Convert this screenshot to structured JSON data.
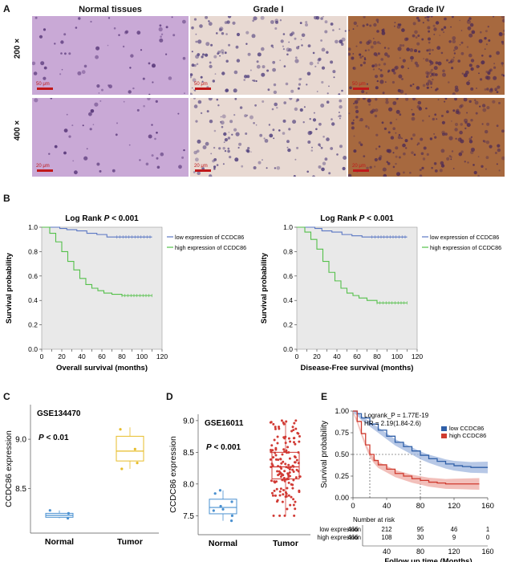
{
  "panel_letters": {
    "A": "A",
    "B": "B",
    "C": "C",
    "D": "D",
    "E": "E"
  },
  "panelA": {
    "columns": [
      "Normal tissues",
      "Grade I",
      "Grade IV"
    ],
    "rows": [
      "200 ×",
      "400 ×"
    ],
    "scale_labels": [
      "50 μm",
      "50 μm",
      "50 μm",
      "20 μm",
      "20 μm",
      "20 μm"
    ],
    "tile_colors": {
      "normal": "#c9a9d6",
      "grade1": "#e8d9d2",
      "grade4": "#a7693f"
    }
  },
  "chart_data": [
    {
      "type": "line",
      "id": "B-left",
      "title_prefix": "Log Rank ",
      "title_p": "P",
      "title_suffix": " < 0.001",
      "xlabel": "Overall survival (months)",
      "ylabel": "Survival probability",
      "xlim": [
        0,
        120
      ],
      "ylim": [
        0,
        1.0
      ],
      "xticks": [
        0,
        10,
        20,
        30,
        40,
        50,
        60,
        70,
        80,
        90,
        100,
        110,
        120
      ],
      "yticks": [
        0.0,
        0.2,
        0.4,
        0.6,
        0.8,
        1.0
      ],
      "ytick_labels": [
        "0.0",
        "0.2",
        "0.4",
        "0.6",
        "0.8",
        "1.0"
      ],
      "series": [
        {
          "name": "low expression of CCDC86",
          "color": "#5b78c4",
          "x": [
            0,
            8,
            18,
            25,
            35,
            45,
            55,
            65,
            75,
            85,
            95,
            110
          ],
          "y": [
            1.0,
            1.0,
            0.99,
            0.98,
            0.97,
            0.95,
            0.94,
            0.92,
            0.92,
            0.92,
            0.92,
            0.92
          ]
        },
        {
          "name": "high expression of CCDC86",
          "color": "#54c04a",
          "x": [
            0,
            8,
            14,
            20,
            26,
            32,
            38,
            44,
            50,
            56,
            62,
            70,
            80,
            90,
            100,
            110
          ],
          "y": [
            1.0,
            0.95,
            0.88,
            0.8,
            0.72,
            0.65,
            0.58,
            0.53,
            0.5,
            0.48,
            0.46,
            0.45,
            0.44,
            0.44,
            0.44,
            0.44
          ]
        }
      ]
    },
    {
      "type": "line",
      "id": "B-right",
      "title_prefix": "Log Rank ",
      "title_p": "P",
      "title_suffix": " < 0.001",
      "xlabel": "Disease-Free survival (months)",
      "ylabel": "Survival probability",
      "xlim": [
        0,
        120
      ],
      "ylim": [
        0,
        1.0
      ],
      "xticks": [
        0,
        10,
        20,
        30,
        40,
        50,
        60,
        70,
        80,
        90,
        100,
        110,
        120
      ],
      "yticks": [
        0.0,
        0.2,
        0.4,
        0.6,
        0.8,
        1.0
      ],
      "ytick_labels": [
        "0.0",
        "0.2",
        "0.4",
        "0.6",
        "0.8",
        "1.0"
      ],
      "series": [
        {
          "name": "low expression of CCDC86",
          "color": "#5b78c4",
          "x": [
            0,
            8,
            18,
            25,
            35,
            45,
            55,
            65,
            75,
            85,
            95,
            110
          ],
          "y": [
            1.0,
            1.0,
            0.99,
            0.97,
            0.96,
            0.94,
            0.93,
            0.92,
            0.92,
            0.92,
            0.92,
            0.92
          ]
        },
        {
          "name": "high expression of CCDC86",
          "color": "#54c04a",
          "x": [
            0,
            8,
            14,
            20,
            26,
            32,
            38,
            44,
            50,
            56,
            62,
            70,
            80,
            90,
            100,
            110
          ],
          "y": [
            1.0,
            0.96,
            0.9,
            0.82,
            0.72,
            0.63,
            0.56,
            0.5,
            0.46,
            0.44,
            0.42,
            0.4,
            0.38,
            0.38,
            0.38,
            0.38
          ]
        }
      ]
    },
    {
      "type": "box",
      "id": "C",
      "title": "GSE134470",
      "pvalue_p": "P",
      "pvalue_suffix": " < 0.01",
      "ylabel": "CCDC86 expression",
      "ylim": [
        8.05,
        9.35
      ],
      "yticks": [
        8.5,
        9.0
      ],
      "ytick_labels": [
        "8.5",
        "9.0"
      ],
      "categories": [
        "Normal",
        "Tumor"
      ],
      "colors": [
        "#4a90d0",
        "#e7bd2a"
      ],
      "boxes": [
        {
          "min": 8.2,
          "q1": 8.21,
          "median": 8.23,
          "q3": 8.25,
          "max": 8.28,
          "points": [
            8.2,
            8.25,
            8.28
          ]
        },
        {
          "min": 8.7,
          "q1": 8.78,
          "median": 8.88,
          "q3": 9.03,
          "max": 9.12,
          "points": [
            8.7,
            8.76,
            8.9,
            9.1
          ]
        }
      ]
    },
    {
      "type": "box",
      "id": "D",
      "title": "GSE16011",
      "pvalue_p": "P",
      "pvalue_suffix": " < 0.001",
      "ylabel": "CCDC86 expression",
      "ylim": [
        7.2,
        9.1
      ],
      "yticks": [
        7.5,
        8.0,
        8.5,
        9.0
      ],
      "ytick_labels": [
        "7.5",
        "8.0",
        "8.5",
        "9.0"
      ],
      "categories": [
        "Normal",
        "Tumor"
      ],
      "colors": [
        "#4a90d0",
        "#d13b35"
      ],
      "boxes": [
        {
          "min": 7.42,
          "q1": 7.53,
          "median": 7.63,
          "q3": 7.76,
          "max": 7.9,
          "points": [
            7.42,
            7.5,
            7.58,
            7.65,
            7.72,
            7.85,
            7.9,
            7.6
          ]
        },
        {
          "min": 7.5,
          "q1": 8.08,
          "median": 8.27,
          "q3": 8.5,
          "max": 9.0,
          "points": []
        }
      ]
    },
    {
      "type": "line",
      "id": "E",
      "annotation1": "Logrank_P = 1.77E-19",
      "annotation2": "HR = 2.19(1.84-2.6)",
      "ylabel": "Survival probability",
      "xlabel": "Follow up time (Months)",
      "xlim": [
        0,
        160
      ],
      "ylim": [
        0,
        1.0
      ],
      "xticks": [
        0,
        40,
        80,
        120,
        160
      ],
      "yticks": [
        0.0,
        0.25,
        0.5,
        0.75,
        1.0
      ],
      "ytick_labels": [
        "0.00",
        "0.25",
        "0.50",
        "0.75",
        "1.00"
      ],
      "median_line_y": 0.5,
      "series": [
        {
          "name": "low CCDC86",
          "color": "#2f5fa8",
          "band": "#9fb6de",
          "x": [
            0,
            5,
            10,
            20,
            30,
            40,
            50,
            60,
            70,
            80,
            90,
            100,
            110,
            120,
            130,
            140,
            150,
            160
          ],
          "y": [
            1.0,
            0.97,
            0.92,
            0.85,
            0.78,
            0.71,
            0.64,
            0.59,
            0.54,
            0.49,
            0.45,
            0.42,
            0.39,
            0.37,
            0.36,
            0.35,
            0.35,
            0.35
          ]
        },
        {
          "name": "high CCDC86",
          "color": "#cf3b2f",
          "band": "#eeaaa3",
          "x": [
            0,
            5,
            10,
            15,
            20,
            25,
            30,
            40,
            50,
            60,
            70,
            80,
            90,
            100,
            110,
            120,
            130,
            140,
            150
          ],
          "y": [
            1.0,
            0.88,
            0.74,
            0.61,
            0.5,
            0.43,
            0.38,
            0.33,
            0.28,
            0.25,
            0.22,
            0.2,
            0.18,
            0.17,
            0.16,
            0.16,
            0.16,
            0.16,
            0.16
          ]
        }
      ],
      "risk_table": {
        "title": "Number at risk",
        "rows": [
          {
            "label": "low expression",
            "values": [
              "466",
              "212",
              "95",
              "46",
              "1"
            ]
          },
          {
            "label": "high expression",
            "values": [
              "466",
              "108",
              "30",
              "9",
              "0"
            ]
          }
        ]
      }
    }
  ]
}
